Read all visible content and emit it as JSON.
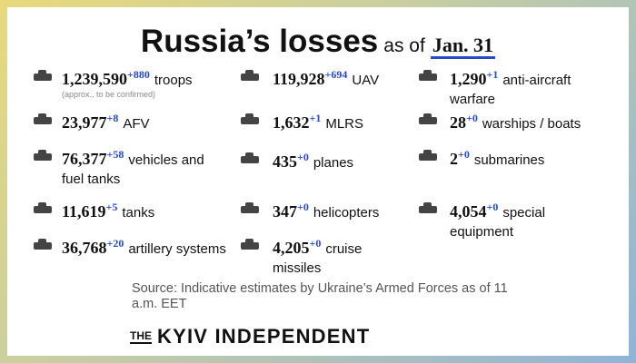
{
  "header": {
    "title": "Russia’s losses",
    "as_of": "as of",
    "date": "Jan. 31"
  },
  "items": [
    {
      "value": "1,239,590",
      "delta": "+880",
      "label": "troops",
      "note": "(approx., to be confirmed)"
    },
    {
      "value": "23,977",
      "delta": "+8",
      "label": "AFV"
    },
    {
      "value": "76,377",
      "delta": "+58",
      "label": "vehicles and fuel tanks"
    },
    {
      "value": "11,619",
      "delta": "+5",
      "label": "tanks"
    },
    {
      "value": "36,768",
      "delta": "+20",
      "label": "artillery systems"
    },
    {
      "value": "119,928",
      "delta": "+694",
      "label": "UAV"
    },
    {
      "value": "1,632",
      "delta": "+1",
      "label": "MLRS"
    },
    {
      "value": "435",
      "delta": "+0",
      "label": "planes"
    },
    {
      "value": "347",
      "delta": "+0",
      "label": "helicopters"
    },
    {
      "value": "4,205",
      "delta": "+0",
      "label": "cruise missiles"
    },
    {
      "value": "1,290",
      "delta": "+1",
      "label": "anti-aircraft warfare"
    },
    {
      "value": "28",
      "delta": "+0",
      "label": "warships / boats"
    },
    {
      "value": "2",
      "delta": "+0",
      "label": "submarines"
    },
    {
      "value": "4,054",
      "delta": "+0",
      "label": "special equipment"
    }
  ],
  "source": "Source: Indicative estimates by Ukraine’s Armed Forces as of 11 a.m. EET",
  "brand": {
    "prefix": "THE",
    "name": "KYIV INDEPENDENT"
  }
}
